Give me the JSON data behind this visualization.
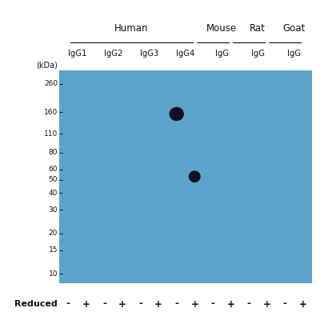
{
  "background_color": "#5ba3c9",
  "fig_bg": "#ffffff",
  "kda_labels": [
    260,
    160,
    110,
    80,
    60,
    50,
    40,
    30,
    20,
    15,
    10
  ],
  "reduced_labels": [
    "-",
    "+",
    "-",
    "+",
    "-",
    "+",
    "-",
    "+",
    "-",
    "+",
    "-",
    "+",
    "-",
    "+"
  ],
  "band1_lane": 7,
  "band1_kda": 155,
  "band2_lane": 8,
  "band2_kda": 53,
  "band_color": "#111122",
  "tick_color": "#111111",
  "text_color": "#111111",
  "lane_count": 14,
  "ylabel": "(kDa)",
  "group_headers": [
    "Human",
    "Mouse",
    "Rat",
    "Goat"
  ],
  "group_lane_centers": [
    4.5,
    9.5,
    11.5,
    13.5
  ],
  "group_line_starts": [
    1,
    8,
    10,
    12
  ],
  "group_line_ends": [
    8,
    10,
    12,
    14
  ],
  "lane_sublabels": [
    [
      1.5,
      "IgG1"
    ],
    [
      3.5,
      "IgG2"
    ],
    [
      5.5,
      "IgG3"
    ],
    [
      7.5,
      "IgG4"
    ],
    [
      9.5,
      "IgG"
    ],
    [
      11.5,
      "IgG"
    ],
    [
      13.5,
      "IgG"
    ]
  ]
}
